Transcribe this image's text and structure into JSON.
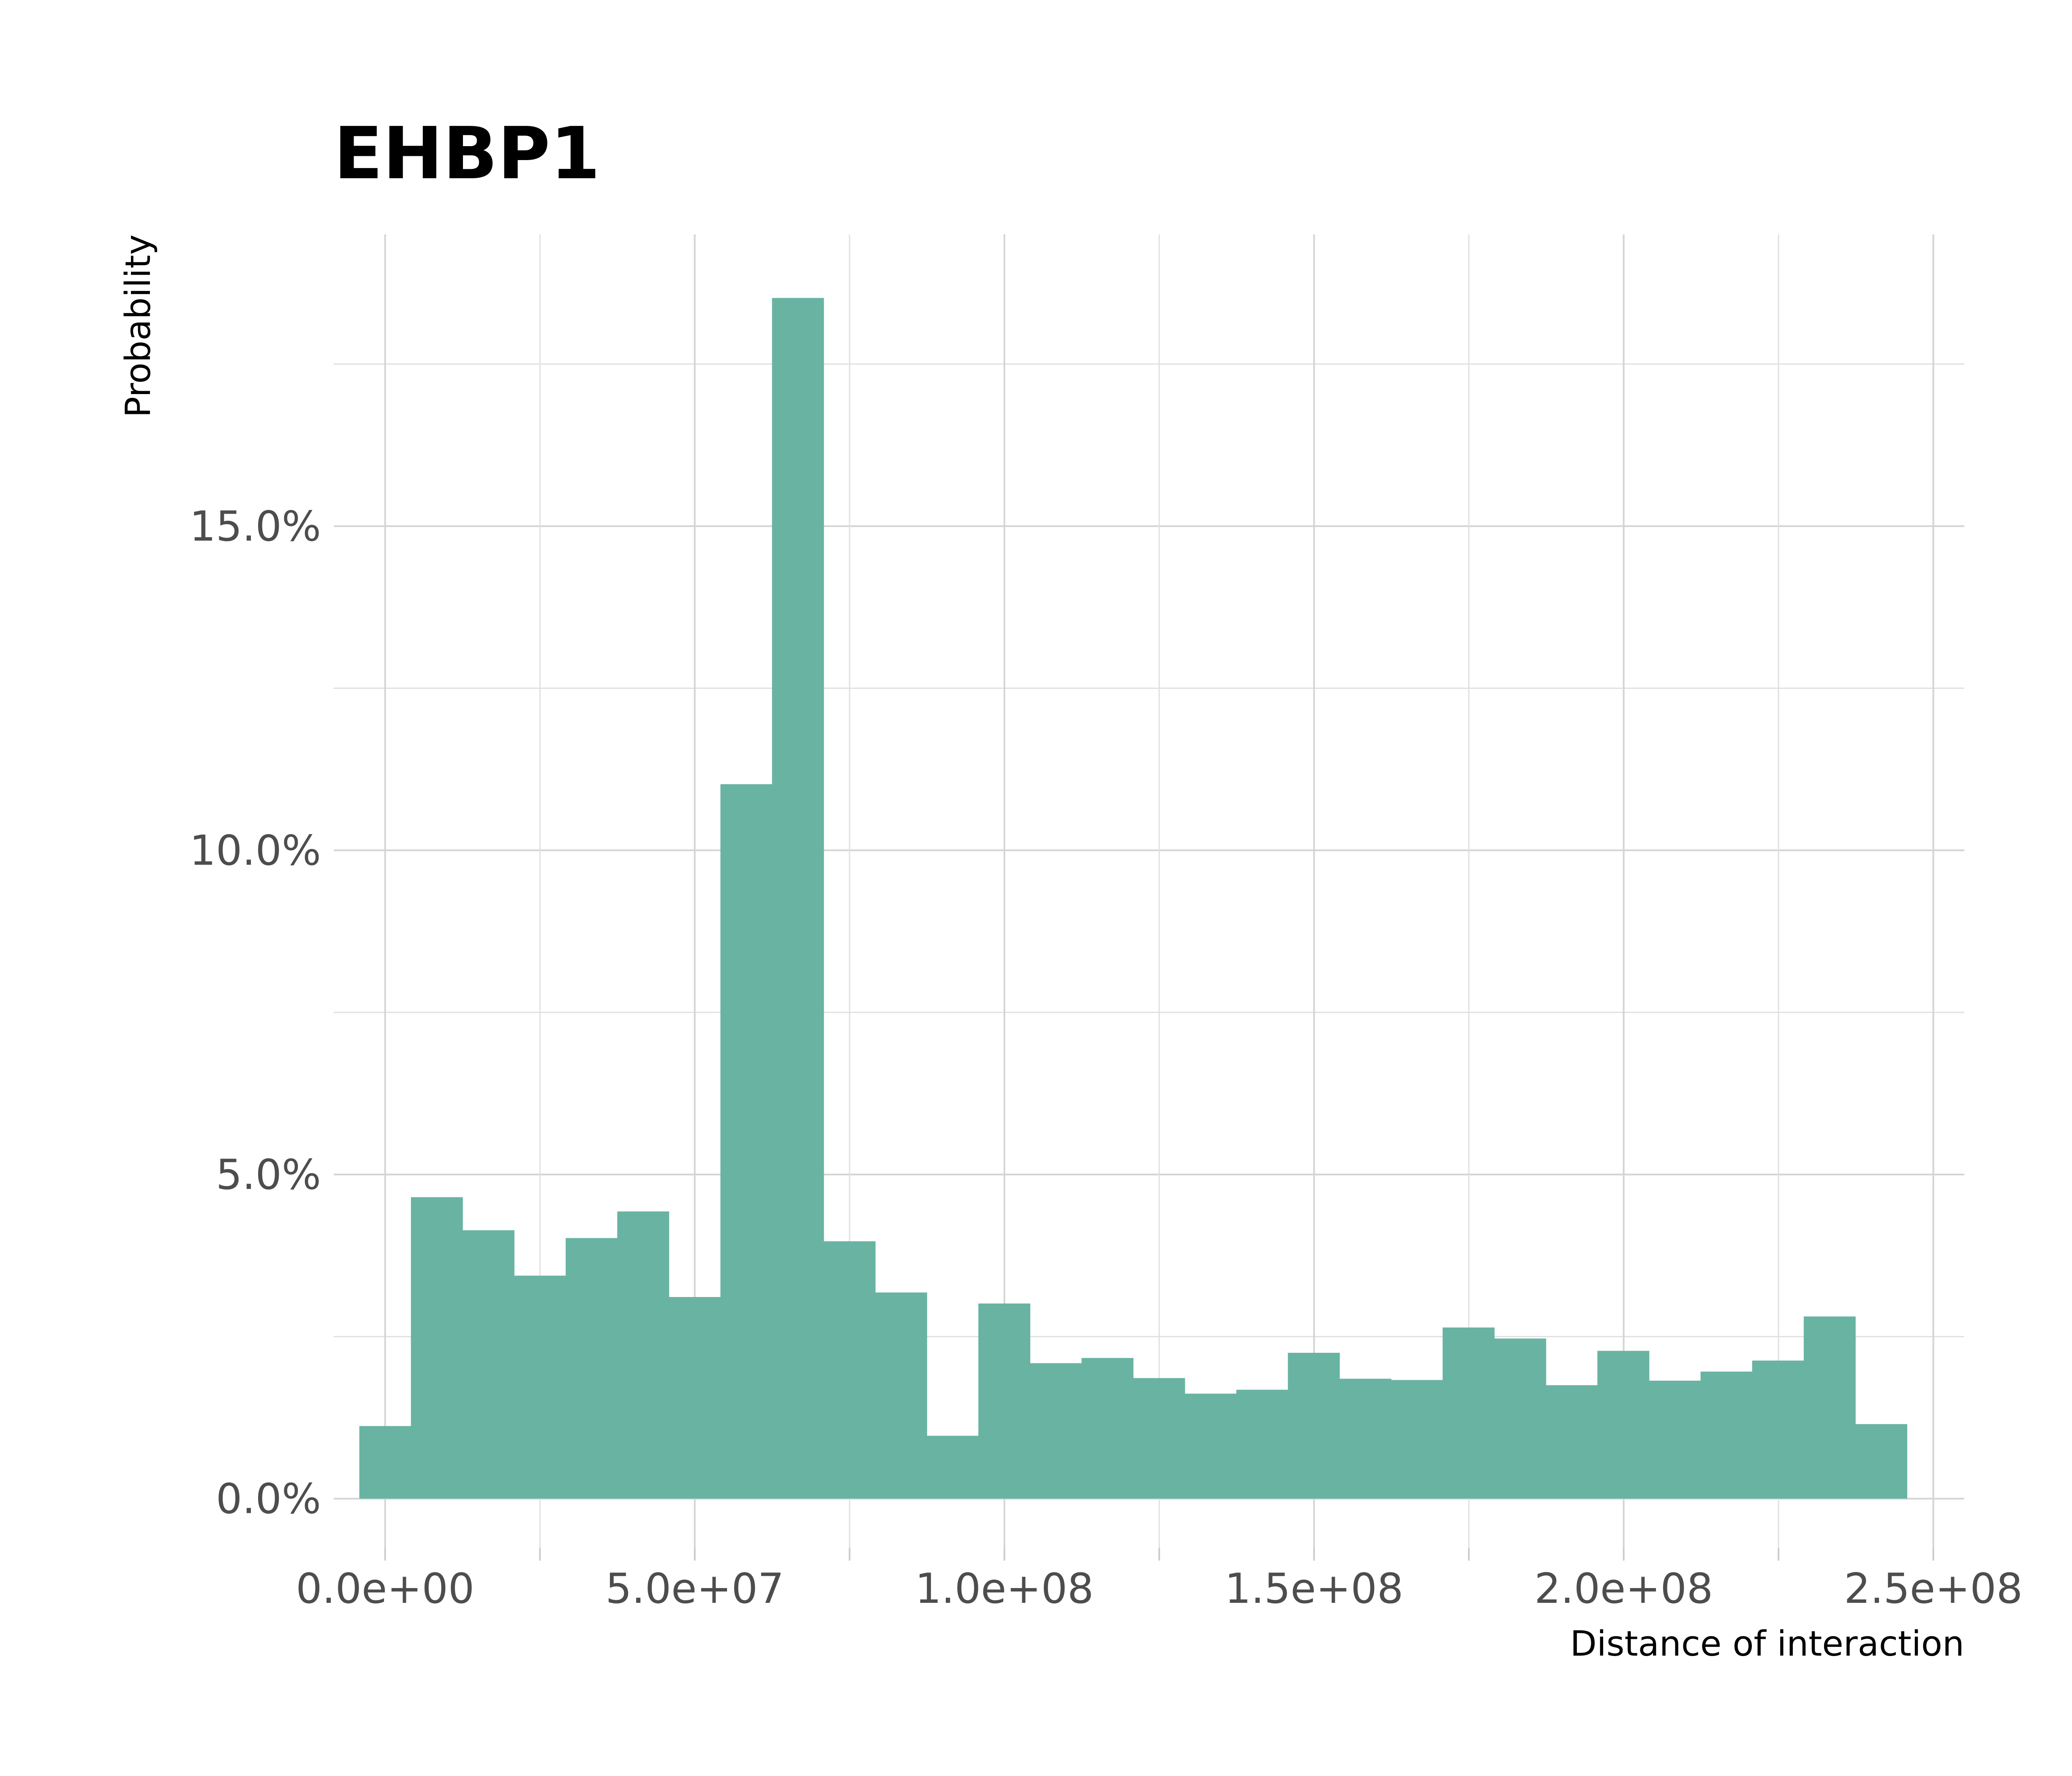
{
  "chart_data": {
    "type": "bar",
    "title": "EHBP1",
    "xlabel": "Distance of interaction",
    "ylabel": "Probability",
    "bar_color": "#69b3a2",
    "grid": true,
    "legend": "none",
    "xlim": [
      -8300000,
      255000000
    ],
    "ylim": [
      -0.0076,
      0.195
    ],
    "x_ticks": [
      {
        "value": 0,
        "label": "0.0e+00"
      },
      {
        "value": 50000000,
        "label": "5.0e+07"
      },
      {
        "value": 100000000,
        "label": "1.0e+08"
      },
      {
        "value": 150000000,
        "label": "1.5e+08"
      },
      {
        "value": 200000000,
        "label": "2.0e+08"
      },
      {
        "value": 250000000,
        "label": "2.5e+08"
      }
    ],
    "x_minor_ticks": [
      25000000,
      75000000,
      125000000,
      175000000,
      225000000
    ],
    "y_ticks": [
      {
        "value": 0.0,
        "label": "0.0%"
      },
      {
        "value": 0.05,
        "label": "5.0%"
      },
      {
        "value": 0.1,
        "label": "10.0%"
      },
      {
        "value": 0.15,
        "label": "15.0%"
      }
    ],
    "y_minor_ticks": [
      0.025,
      0.075,
      0.125,
      0.175
    ],
    "bin_width": 8330000,
    "bin_centers": [
      0,
      8330000,
      16660000,
      24990000,
      33320000,
      41650000,
      49980000,
      58310000,
      66640000,
      74970000,
      83300000,
      91630000,
      99960000,
      108290000,
      116620000,
      124950000,
      133280000,
      141610000,
      149940000,
      158270000,
      166600000,
      174930000,
      183260000,
      191590000,
      199920000,
      208250000,
      216580000,
      224910000,
      233240000,
      241570000
    ],
    "values": [
      0.0112,
      0.0465,
      0.0414,
      0.0344,
      0.0402,
      0.0443,
      0.0311,
      0.1102,
      0.1852,
      0.0397,
      0.0318,
      0.0097,
      0.0301,
      0.0209,
      0.0217,
      0.0186,
      0.0162,
      0.0168,
      0.0225,
      0.0185,
      0.0183,
      0.0264,
      0.0247,
      0.0175,
      0.0228,
      0.0182,
      0.0196,
      0.0213,
      0.0281,
      0.0115
    ]
  }
}
